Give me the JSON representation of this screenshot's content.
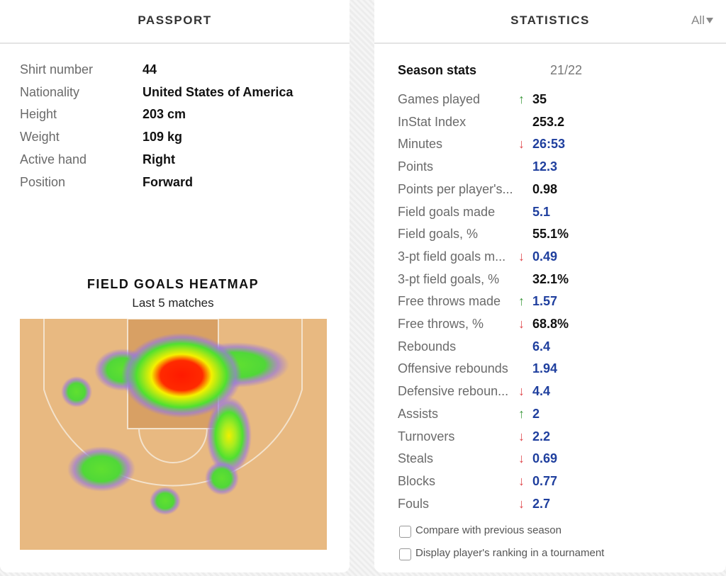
{
  "passport": {
    "title": "PASSPORT",
    "rows": [
      {
        "label": "Shirt number",
        "value": "44"
      },
      {
        "label": "Nationality",
        "value": "United States of America"
      },
      {
        "label": "Height",
        "value": "203 cm"
      },
      {
        "label": "Weight",
        "value": "109 kg"
      },
      {
        "label": "Active hand",
        "value": "Right"
      },
      {
        "label": "Position",
        "value": "Forward"
      }
    ]
  },
  "heatmap": {
    "title": "FIELD GOALS HEATMAP",
    "subtitle": "Last 5 matches"
  },
  "statistics": {
    "title": "STATISTICS",
    "filter": "All",
    "season_label": "Season stats",
    "season": "21/22",
    "rows": [
      {
        "label": "Games played",
        "trend": "↑",
        "trend_color": "#3f9a3f",
        "value": "35",
        "value_color": "#111111"
      },
      {
        "label": "InStat Index",
        "value": "253.2",
        "value_color": "#111111"
      },
      {
        "label": "Minutes",
        "trend": "↓",
        "trend_color": "#e0464b",
        "value": "26:53",
        "value_color": "#1f3f9e"
      },
      {
        "label": "Points",
        "value": "12.3",
        "value_color": "#1f3f9e"
      },
      {
        "label": "Points per player's...",
        "value": "0.98",
        "value_color": "#111111"
      },
      {
        "label": "Field goals made",
        "value": "5.1",
        "value_color": "#1f3f9e"
      },
      {
        "label": "Field goals, %",
        "value": "55.1%",
        "value_color": "#111111"
      },
      {
        "label": "3-pt field goals m...",
        "trend": "↓",
        "trend_color": "#e0464b",
        "value": "0.49",
        "value_color": "#1f3f9e"
      },
      {
        "label": "3-pt field goals, %",
        "value": "32.1%",
        "value_color": "#111111"
      },
      {
        "label": "Free throws made",
        "trend": "↑",
        "trend_color": "#3f9a3f",
        "value": "1.57",
        "value_color": "#1f3f9e"
      },
      {
        "label": "Free throws, %",
        "trend": "↓",
        "trend_color": "#e0464b",
        "value": "68.8%",
        "value_color": "#111111"
      },
      {
        "label": "Rebounds",
        "value": "6.4",
        "value_color": "#1f3f9e"
      },
      {
        "label": "Offensive rebounds",
        "value": "1.94",
        "value_color": "#1f3f9e"
      },
      {
        "label": "Defensive reboun...",
        "trend": "↓",
        "trend_color": "#e0464b",
        "value": "4.4",
        "value_color": "#1f3f9e"
      },
      {
        "label": "Assists",
        "trend": "↑",
        "trend_color": "#3f9a3f",
        "value": "2",
        "value_color": "#1f3f9e"
      },
      {
        "label": "Turnovers",
        "trend": "↓",
        "trend_color": "#e0464b",
        "value": "2.2",
        "value_color": "#1f3f9e"
      },
      {
        "label": "Steals",
        "trend": "↓",
        "trend_color": "#e0464b",
        "value": "0.69",
        "value_color": "#1f3f9e"
      },
      {
        "label": "Blocks",
        "trend": "↓",
        "trend_color": "#e0464b",
        "value": "0.77",
        "value_color": "#1f3f9e"
      },
      {
        "label": "Fouls",
        "trend": "↓",
        "trend_color": "#e0464b",
        "value": "2.7",
        "value_color": "#1f3f9e"
      }
    ],
    "checkboxes": [
      "Compare with previous season",
      "Display player's ranking in a tournament"
    ]
  }
}
